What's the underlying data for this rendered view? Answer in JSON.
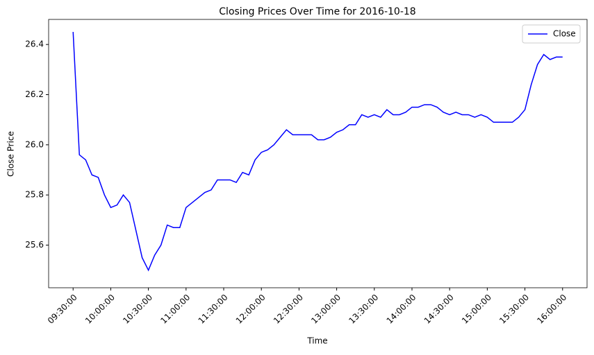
{
  "chart_data": {
    "type": "line",
    "title": "Closing Prices Over Time for 2016-10-18",
    "xlabel": "Time",
    "ylabel": "Close Price",
    "x": [
      "09:30:00",
      "09:35:00",
      "09:40:00",
      "09:45:00",
      "09:50:00",
      "09:55:00",
      "10:00:00",
      "10:05:00",
      "10:10:00",
      "10:15:00",
      "10:20:00",
      "10:25:00",
      "10:30:00",
      "10:35:00",
      "10:40:00",
      "10:45:00",
      "10:50:00",
      "10:55:00",
      "11:00:00",
      "11:05:00",
      "11:10:00",
      "11:15:00",
      "11:20:00",
      "11:25:00",
      "11:30:00",
      "11:35:00",
      "11:40:00",
      "11:45:00",
      "11:50:00",
      "11:55:00",
      "12:00:00",
      "12:05:00",
      "12:10:00",
      "12:15:00",
      "12:20:00",
      "12:25:00",
      "12:30:00",
      "12:35:00",
      "12:40:00",
      "12:45:00",
      "12:50:00",
      "12:55:00",
      "13:00:00",
      "13:05:00",
      "13:10:00",
      "13:15:00",
      "13:20:00",
      "13:25:00",
      "13:30:00",
      "13:35:00",
      "13:40:00",
      "13:45:00",
      "13:50:00",
      "13:55:00",
      "14:00:00",
      "14:05:00",
      "14:10:00",
      "14:15:00",
      "14:20:00",
      "14:25:00",
      "14:30:00",
      "14:35:00",
      "14:40:00",
      "14:45:00",
      "14:50:00",
      "14:55:00",
      "15:00:00",
      "15:05:00",
      "15:10:00",
      "15:15:00",
      "15:20:00",
      "15:25:00",
      "15:30:00",
      "15:35:00",
      "15:40:00",
      "15:45:00",
      "15:50:00",
      "15:55:00",
      "16:00:00"
    ],
    "series": [
      {
        "name": "Close",
        "color": "#0000ff",
        "values": [
          26.45,
          25.96,
          25.94,
          25.88,
          25.87,
          25.8,
          25.75,
          25.76,
          25.8,
          25.77,
          25.66,
          25.55,
          25.5,
          25.56,
          25.6,
          25.68,
          25.67,
          25.67,
          25.75,
          25.77,
          25.79,
          25.81,
          25.82,
          25.86,
          25.86,
          25.86,
          25.85,
          25.89,
          25.88,
          25.94,
          25.97,
          25.98,
          26.0,
          26.03,
          26.06,
          26.04,
          26.04,
          26.04,
          26.04,
          26.02,
          26.02,
          26.03,
          26.05,
          26.06,
          26.08,
          26.08,
          26.12,
          26.11,
          26.12,
          26.11,
          26.14,
          26.12,
          26.12,
          26.13,
          26.15,
          26.15,
          26.16,
          26.16,
          26.15,
          26.13,
          26.12,
          26.13,
          26.12,
          26.12,
          26.11,
          26.12,
          26.11,
          26.09,
          26.09,
          26.09,
          26.09,
          26.11,
          26.14,
          26.24,
          26.32,
          26.36,
          26.34,
          26.35,
          26.35
        ]
      }
    ],
    "xlim": [
      "09:10:30",
      "16:19:30"
    ],
    "xticks": [
      "09:30:00",
      "10:00:00",
      "10:30:00",
      "11:00:00",
      "11:30:00",
      "12:00:00",
      "12:30:00",
      "13:00:00",
      "13:30:00",
      "14:00:00",
      "14:30:00",
      "15:00:00",
      "15:30:00",
      "16:00:00"
    ],
    "ylim": [
      25.43,
      26.5
    ],
    "yticks": [
      25.6,
      25.8,
      {
        "value": 26,
        "label": "26.0"
      },
      26.2,
      26.4
    ],
    "legend": "upper right"
  }
}
